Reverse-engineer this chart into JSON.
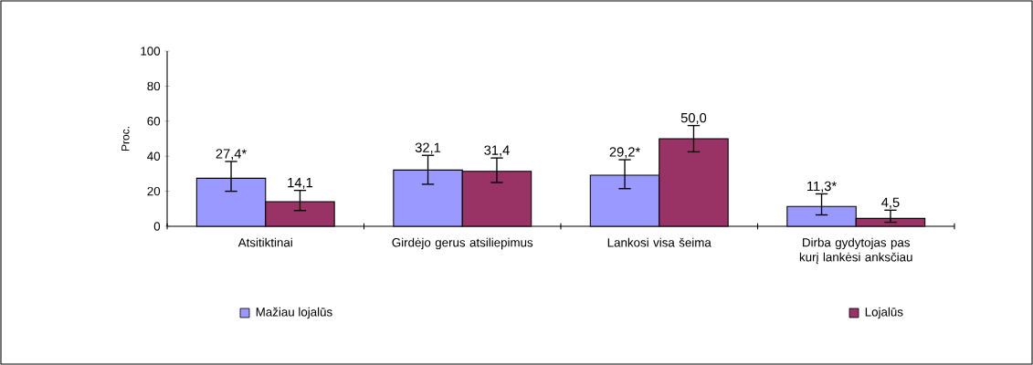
{
  "chart_data": {
    "type": "bar",
    "ylabel": "Proc.",
    "categories": [
      "Atsitiktinai",
      "Girdėjo gerus atsiliepimus",
      "Lankosi visa šeima",
      "Dirba gydytojas pas kurį lankėsi anksčiau"
    ],
    "series": [
      {
        "name": "Mažiau lojalūs",
        "color": "#9999ff",
        "values": [
          27.4,
          32.1,
          29.2,
          11.3
        ],
        "errors": [
          [
            20,
            37
          ],
          [
            24,
            40.5
          ],
          [
            21.5,
            38
          ],
          [
            6.5,
            18.5
          ]
        ],
        "value_labels": [
          "27,4*",
          "32,1",
          "29,2*",
          "11,3*"
        ]
      },
      {
        "name": "Lojalūs",
        "color": "#993366",
        "values": [
          14.1,
          31.4,
          50.0,
          4.5
        ],
        "errors": [
          [
            9,
            20.5
          ],
          [
            25,
            39
          ],
          [
            42.5,
            57.5
          ],
          [
            2.3,
            9.2
          ]
        ],
        "value_labels": [
          "14,1",
          "31,4",
          "50,0",
          "4,5"
        ]
      }
    ],
    "ylim": [
      0,
      100
    ],
    "yticks": [
      0,
      20,
      40,
      60,
      80,
      100
    ],
    "grid": false,
    "legend": "bottom"
  }
}
